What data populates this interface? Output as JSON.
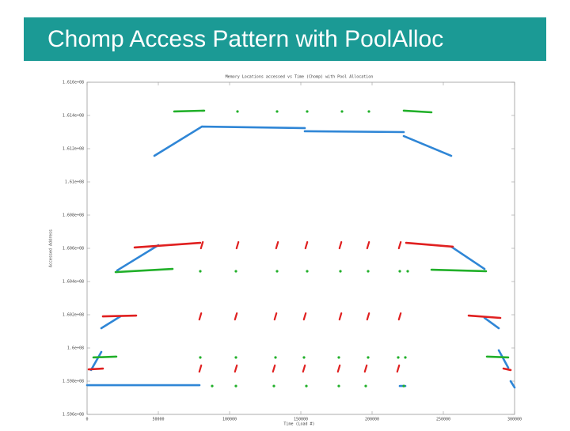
{
  "slide": {
    "title": "Chomp Access Pattern with PoolAlloc"
  },
  "chart_data": {
    "type": "line",
    "title": "Memory Locations accessed vs Time (Chomp) with Pool Allocation",
    "x_label": "Time (Load #)",
    "y_label": "Accessed Address",
    "xlim": [
      0,
      300000
    ],
    "ylim": [
      159600000,
      161600000
    ],
    "xticks": [
      0,
      50000,
      100000,
      150000,
      200000,
      250000,
      300000
    ],
    "yticks": [
      {
        "value": 159600000,
        "label": "1.596e+08"
      },
      {
        "value": 159800000,
        "label": "1.598e+08"
      },
      {
        "value": 160000000,
        "label": "1.6e+08"
      },
      {
        "value": 160200000,
        "label": "1.602e+08"
      },
      {
        "value": 160400000,
        "label": "1.604e+08"
      },
      {
        "value": 160600000,
        "label": "1.606e+08"
      },
      {
        "value": 160800000,
        "label": "1.608e+08"
      },
      {
        "value": 161000000,
        "label": "1.61e+08"
      },
      {
        "value": 161200000,
        "label": "1.612e+08"
      },
      {
        "value": 161400000,
        "label": "1.614e+08"
      },
      {
        "value": 161600000,
        "label": "1.616e+08"
      }
    ],
    "grid": false,
    "series": [
      {
        "color": "#2f86d6",
        "style": "lines",
        "x": [
          47222,
          80556,
          null,
          80556,
          152778,
          null,
          152778,
          222222,
          null,
          222222,
          255556,
          null,
          21111,
          50000,
          null,
          255556,
          278889,
          null,
          10000,
          23333,
          null,
          278889,
          288889,
          null,
          2778,
          10000,
          null,
          288889,
          295556,
          null,
          0,
          78889,
          null,
          219444,
          223333,
          null,
          297222,
          300000
        ],
        "values": [
          161157000,
          161333000,
          null,
          161333000,
          161324000,
          null,
          161305000,
          161300000,
          null,
          161276000,
          161157000,
          null,
          160467000,
          160619000,
          null,
          160610000,
          160476000,
          null,
          160119000,
          160190000,
          null,
          160181000,
          160119000,
          null,
          159867000,
          159976000,
          null,
          159986000,
          159881000,
          null,
          159776000,
          159776000,
          null,
          159771000,
          159771000,
          null,
          159800000,
          159762000
        ]
      },
      {
        "color": "#22b02a",
        "style": "lines",
        "x": [
          61111,
          82222,
          null,
          222222,
          241667,
          null,
          20000,
          60000,
          null,
          241667,
          280000,
          null,
          4444,
          20556,
          null,
          280556,
          295556
        ],
        "values": [
          161424000,
          161429000,
          null,
          161429000,
          161419000,
          null,
          160457000,
          160476000,
          null,
          160471000,
          160462000,
          null,
          159943000,
          159948000,
          null,
          159948000,
          159943000
        ]
      },
      {
        "color": "#e02020",
        "style": "lines",
        "x": [
          33333,
          79444,
          null,
          223889,
          256667,
          null,
          11111,
          34444,
          null,
          267778,
          290000,
          null,
          1111,
          11111,
          null,
          292222,
          297222
        ],
        "values": [
          160605000,
          160633000,
          null,
          160633000,
          160610000,
          null,
          160190000,
          160195000,
          null,
          160195000,
          160181000,
          null,
          159871000,
          159876000,
          null,
          159876000,
          159867000
        ]
      },
      {
        "color": "#22b02a",
        "style": "dots",
        "x": [
          105556,
          133333,
          154444,
          178889,
          197778,
          79444,
          104444,
          133333,
          154444,
          177778,
          197222,
          219444,
          225000,
          79444,
          104444,
          132222,
          152222,
          176667,
          197222,
          218333,
          223333,
          87778,
          104444,
          131111,
          153889,
          176667,
          195556,
          222222
        ],
        "values": [
          161424000,
          161424000,
          161424000,
          161424000,
          161424000,
          160462000,
          160462000,
          160462000,
          160462000,
          160462000,
          160462000,
          160462000,
          160462000,
          159943000,
          159943000,
          159943000,
          159943000,
          159943000,
          159943000,
          159943000,
          159943000,
          159771000,
          159771000,
          159771000,
          159771000,
          159771000,
          159771000,
          159771000
        ]
      },
      {
        "color": "#e02020",
        "style": "dashes",
        "x": [
          80556,
          105556,
          133333,
          153889,
          177778,
          197222,
          219444,
          79444,
          104444,
          132222,
          152778,
          177778,
          197222,
          219444,
          79444,
          104444,
          131111,
          152222,
          176667,
          195556,
          218333
        ],
        "values": [
          160619000,
          160619000,
          160619000,
          160619000,
          160619000,
          160619000,
          160619000,
          160190000,
          160190000,
          160190000,
          160190000,
          160190000,
          160190000,
          160190000,
          159876000,
          159876000,
          159876000,
          159876000,
          159876000,
          159876000,
          159876000
        ]
      }
    ]
  }
}
